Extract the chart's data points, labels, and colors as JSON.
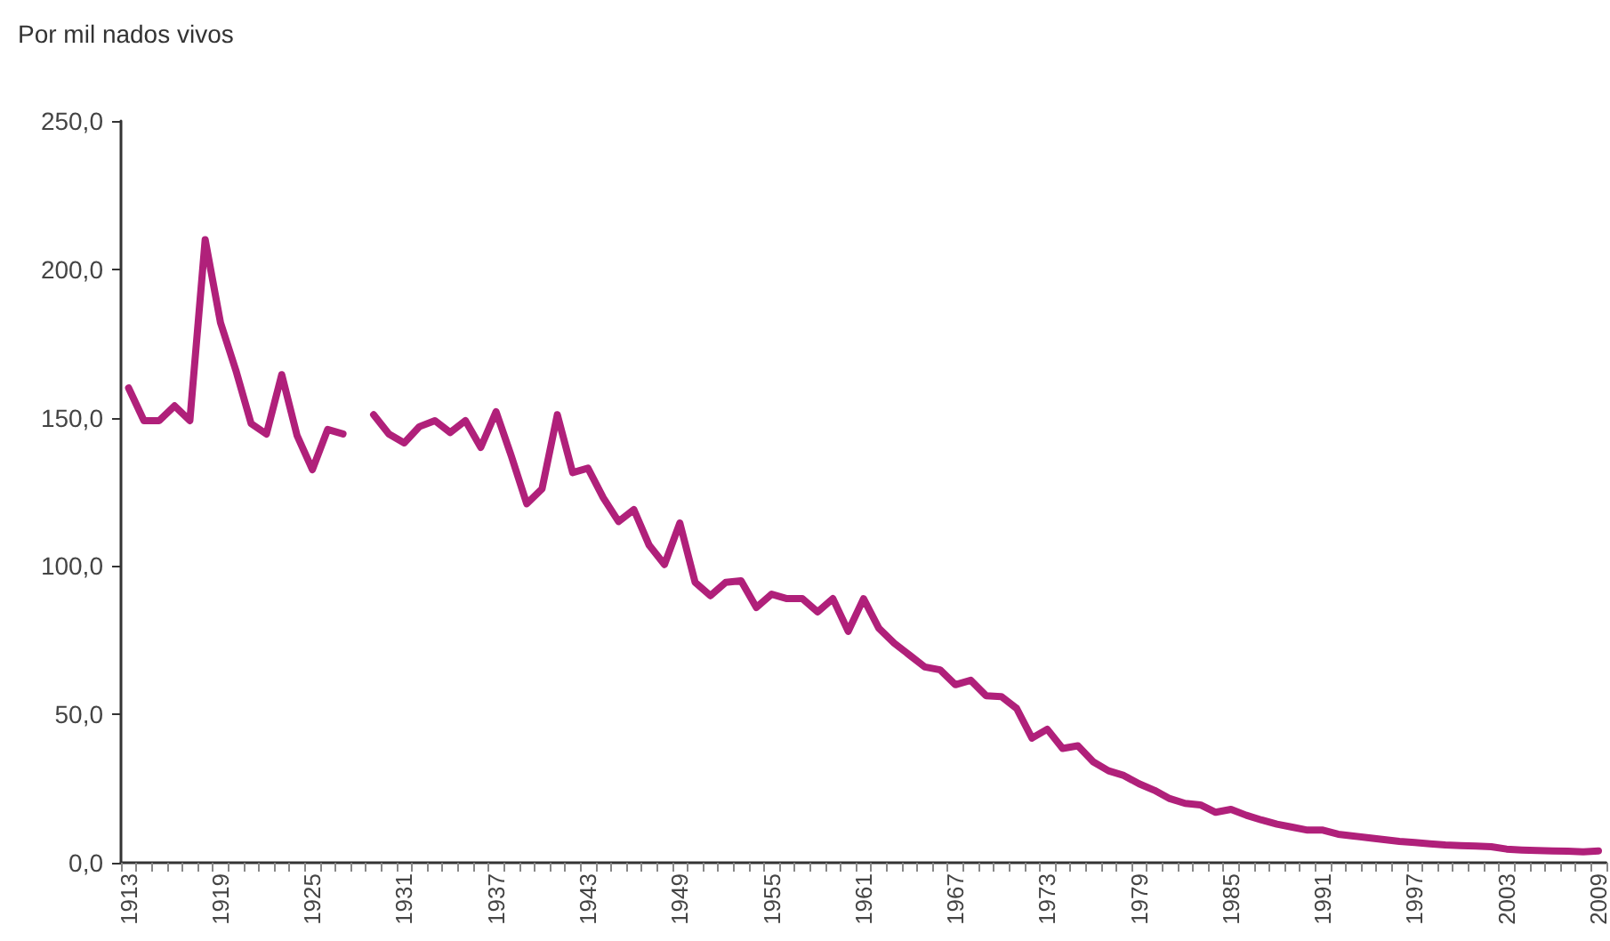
{
  "chart_data": {
    "type": "line",
    "ylabel": "Por mil nados vivos",
    "categories": [
      "1913",
      null,
      null,
      null,
      null,
      null,
      "1919",
      null,
      null,
      null,
      null,
      null,
      "1925",
      null,
      null,
      null,
      null,
      null,
      "1931",
      null,
      null,
      null,
      null,
      null,
      "1937",
      null,
      null,
      null,
      null,
      null,
      "1943",
      null,
      null,
      null,
      null,
      null,
      "1949",
      null,
      null,
      null,
      null,
      null,
      "1955",
      null,
      null,
      null,
      null,
      null,
      "1961",
      null,
      null,
      null,
      null,
      null,
      "1967",
      null,
      null,
      null,
      null,
      null,
      "1973",
      null,
      null,
      null,
      null,
      null,
      "1979",
      null,
      null,
      null,
      null,
      null,
      "1985",
      null,
      null,
      null,
      null,
      null,
      "1991",
      null,
      null,
      null,
      null,
      null,
      "1997",
      null,
      null,
      null,
      null,
      null,
      "2003",
      null,
      null,
      null,
      null,
      null,
      "2009"
    ],
    "series": [
      {
        "color": "#b0207a",
        "values": [
          160,
          149,
          149,
          154,
          149,
          210,
          182,
          166,
          148,
          144.5,
          164.5,
          144,
          132.5,
          146,
          144.5,
          null,
          151,
          144.5,
          141.5,
          147,
          149,
          145,
          149,
          140,
          152,
          137,
          121,
          126,
          151,
          131.5,
          133,
          123,
          115,
          119,
          107,
          100.5,
          114.5,
          94.5,
          90,
          94.5,
          95,
          86,
          90.5,
          89,
          89,
          84.5,
          89,
          78,
          89,
          79,
          74,
          70,
          66,
          65,
          60,
          61.5,
          56.3,
          56,
          52,
          42,
          45,
          38.5,
          39.4,
          34,
          31,
          29.4,
          26.6,
          24.4,
          21.6,
          20,
          19.5,
          17,
          18,
          16,
          14.4,
          13,
          12,
          11,
          11,
          9.6,
          9,
          8.4,
          7.8,
          7.2,
          6.8,
          6.4,
          6,
          5.8,
          5.6,
          5.4,
          4.6,
          4.3,
          4.1,
          4,
          3.9,
          3.7,
          4
        ]
      }
    ],
    "ylim": [
      0,
      250
    ],
    "yticks": [
      {
        "value": 0,
        "label": "0,0"
      },
      {
        "value": 50,
        "label": "50,0"
      },
      {
        "value": 100,
        "label": "100,0"
      },
      {
        "value": 150,
        "label": "150,0"
      },
      {
        "value": 200,
        "label": "200,0"
      },
      {
        "value": 250,
        "label": "250,0"
      }
    ],
    "grid": false,
    "marker": "none",
    "line_style": "solid"
  }
}
